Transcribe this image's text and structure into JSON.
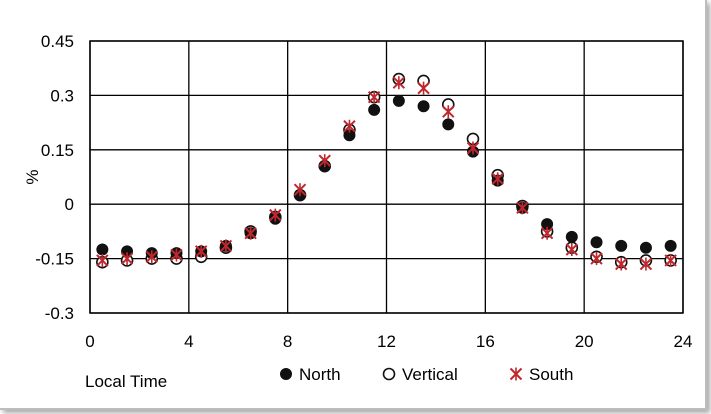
{
  "chart_data": {
    "type": "scatter",
    "title": "",
    "xlabel": "Local Time",
    "ylabel": "%",
    "xlim": [
      0,
      24
    ],
    "ylim": [
      -0.3,
      0.45
    ],
    "xticks": [
      "0",
      "4",
      "8",
      "12",
      "16",
      "20",
      "24"
    ],
    "yticks": [
      "0.45",
      "0.3",
      "0.15",
      "0",
      "-0.15",
      "-0.3"
    ],
    "ytick_values": [
      0.45,
      0.3,
      0.15,
      0,
      -0.15,
      -0.3
    ],
    "xtick_values": [
      0,
      4,
      8,
      12,
      16,
      20,
      24
    ],
    "grid": true,
    "legend_position": "bottom",
    "x": [
      0.5,
      1.5,
      2.5,
      3.5,
      4.5,
      5.5,
      6.5,
      7.5,
      8.5,
      9.5,
      10.5,
      11.5,
      12.5,
      13.5,
      14.5,
      15.5,
      16.5,
      17.5,
      18.5,
      19.5,
      20.5,
      21.5,
      22.5,
      23.5
    ],
    "series": [
      {
        "name": "North",
        "marker": "filled-circle",
        "color": "#111111",
        "values": [
          -0.125,
          -0.13,
          -0.135,
          -0.135,
          -0.13,
          -0.115,
          -0.08,
          -0.04,
          0.025,
          0.105,
          0.19,
          0.26,
          0.285,
          0.27,
          0.22,
          0.145,
          0.065,
          -0.01,
          -0.055,
          -0.09,
          -0.105,
          -0.115,
          -0.12,
          -0.115
        ]
      },
      {
        "name": "Vertical",
        "marker": "open-circle",
        "color": "#111111",
        "values": [
          -0.16,
          -0.155,
          -0.15,
          -0.15,
          -0.145,
          -0.12,
          -0.075,
          -0.035,
          0.025,
          0.105,
          0.205,
          0.295,
          0.345,
          0.34,
          0.275,
          0.18,
          0.08,
          -0.005,
          -0.075,
          -0.12,
          -0.145,
          -0.16,
          -0.155,
          -0.155
        ]
      },
      {
        "name": "South",
        "marker": "asterisk",
        "color": "#c0272d",
        "values": [
          -0.155,
          -0.15,
          -0.145,
          -0.14,
          -0.13,
          -0.115,
          -0.08,
          -0.03,
          0.04,
          0.12,
          0.215,
          0.295,
          0.335,
          0.32,
          0.255,
          0.155,
          0.07,
          -0.01,
          -0.08,
          -0.125,
          -0.15,
          -0.165,
          -0.165,
          -0.155
        ]
      }
    ]
  }
}
